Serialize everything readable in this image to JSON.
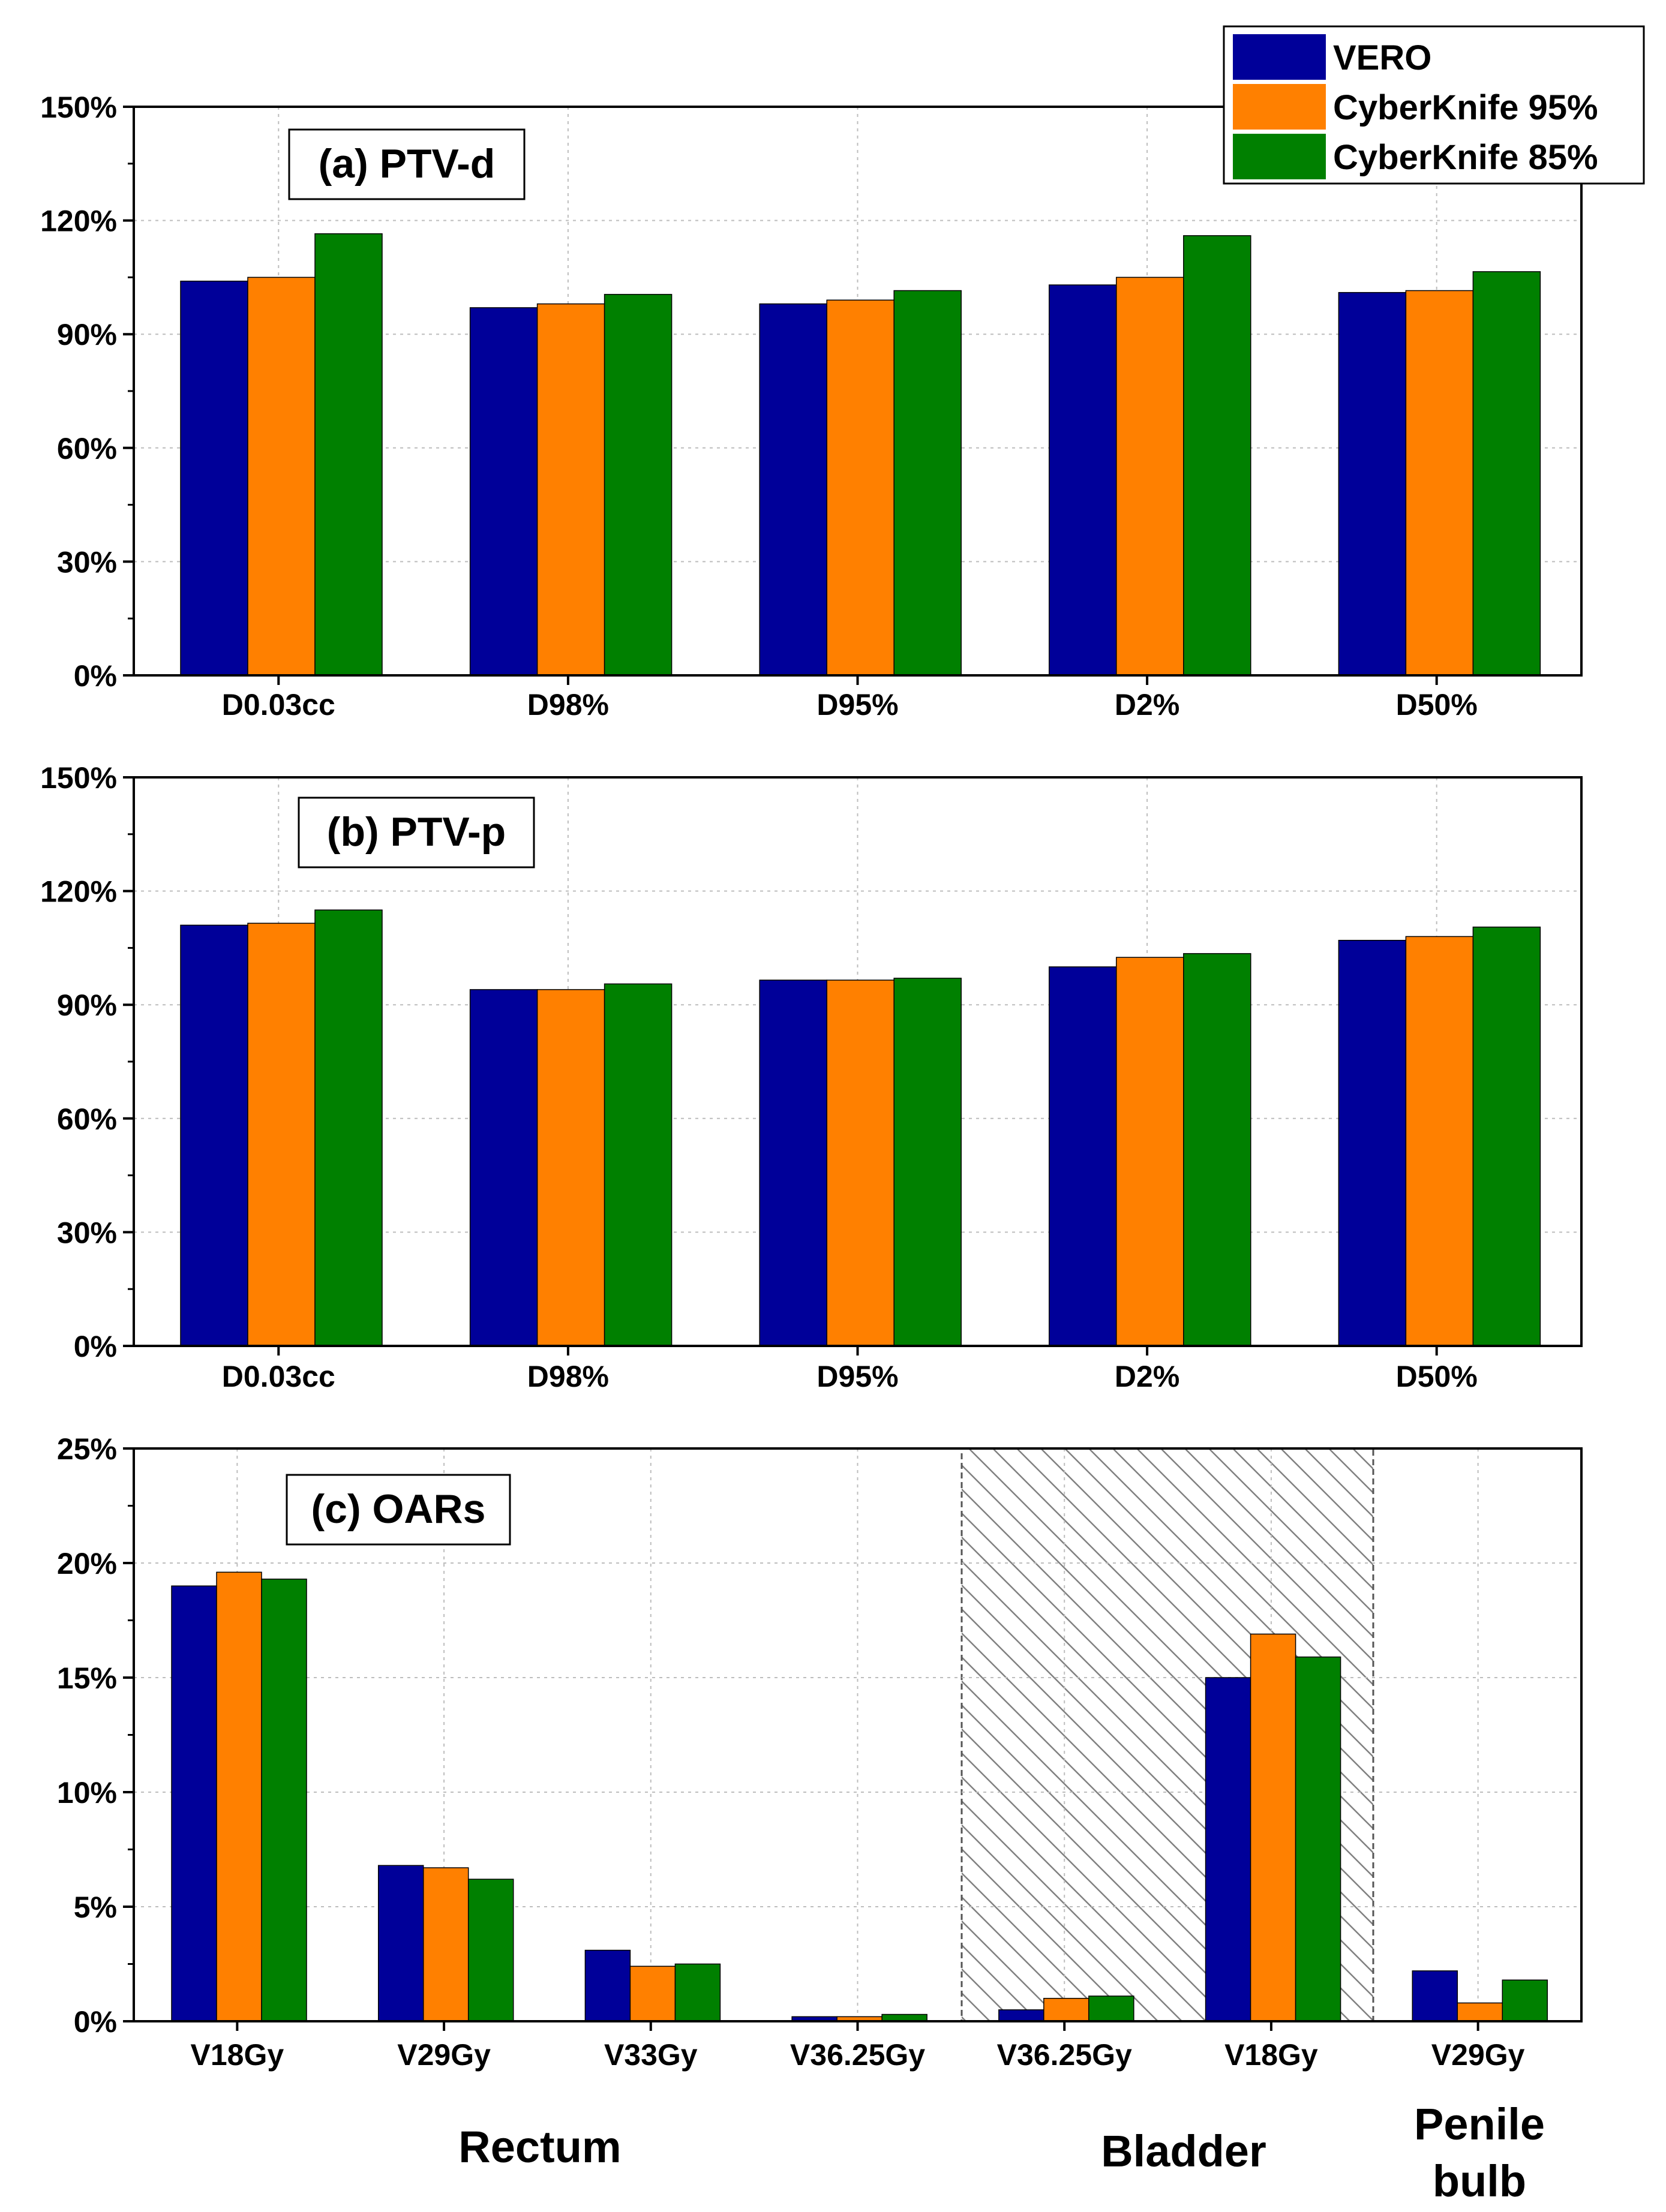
{
  "colors": {
    "VERO": "#000099",
    "CyberKnife 95%": "#ff8000",
    "CyberKnife 85%": "#008000"
  },
  "legend": [
    "VERO",
    "CyberKnife 95%",
    "CyberKnife 85%"
  ],
  "chart_data": [
    {
      "type": "bar",
      "title": "(a) PTV-d",
      "categories": [
        "D0.03cc",
        "D98%",
        "D95%",
        "D2%",
        "D50%"
      ],
      "ylim": [
        0,
        150
      ],
      "yticks": [
        0,
        30,
        60,
        90,
        120,
        150
      ],
      "yticklabels": [
        "0%",
        "30%",
        "60%",
        "90%",
        "120%",
        "150%"
      ],
      "series": [
        {
          "name": "VERO",
          "values": [
            104,
            97,
            98,
            103,
            101
          ]
        },
        {
          "name": "CyberKnife 95%",
          "values": [
            105,
            98,
            99,
            105,
            101.5
          ]
        },
        {
          "name": "CyberKnife 85%",
          "values": [
            116.5,
            100.5,
            101.5,
            116,
            106.5
          ]
        }
      ],
      "grid": true
    },
    {
      "type": "bar",
      "title": "(b) PTV-p",
      "categories": [
        "D0.03cc",
        "D98%",
        "D95%",
        "D2%",
        "D50%"
      ],
      "ylim": [
        0,
        150
      ],
      "yticks": [
        0,
        30,
        60,
        90,
        120,
        150
      ],
      "yticklabels": [
        "0%",
        "30%",
        "60%",
        "90%",
        "120%",
        "150%"
      ],
      "series": [
        {
          "name": "VERO",
          "values": [
            111,
            94,
            96.5,
            100,
            107
          ]
        },
        {
          "name": "CyberKnife 95%",
          "values": [
            111.5,
            94,
            96.5,
            102.5,
            108
          ]
        },
        {
          "name": "CyberKnife 85%",
          "values": [
            115,
            95.5,
            97,
            103.5,
            110.5
          ]
        }
      ],
      "grid": true
    },
    {
      "type": "bar",
      "title": "(c) OARs",
      "categories": [
        "V18Gy",
        "V29Gy",
        "V33Gy",
        "V36.25Gy",
        "V36.25Gy",
        "V18Gy",
        "V29Gy"
      ],
      "ylim": [
        0,
        25
      ],
      "yticks": [
        0,
        5,
        10,
        15,
        20,
        25
      ],
      "yticklabels": [
        "0%",
        "5%",
        "10%",
        "15%",
        "20%",
        "25%"
      ],
      "series": [
        {
          "name": "VERO",
          "values": [
            19,
            6.8,
            3.1,
            0.2,
            0.5,
            15,
            2.2
          ]
        },
        {
          "name": "CyberKnife 95%",
          "values": [
            19.6,
            6.7,
            2.4,
            0.2,
            1.0,
            16.9,
            0.8
          ]
        },
        {
          "name": "CyberKnife 85%",
          "values": [
            19.3,
            6.2,
            2.5,
            0.3,
            1.1,
            15.9,
            1.8
          ]
        }
      ],
      "groups": [
        "Rectum",
        "Bladder",
        "Penile",
        "bulb"
      ],
      "grid": true
    }
  ]
}
